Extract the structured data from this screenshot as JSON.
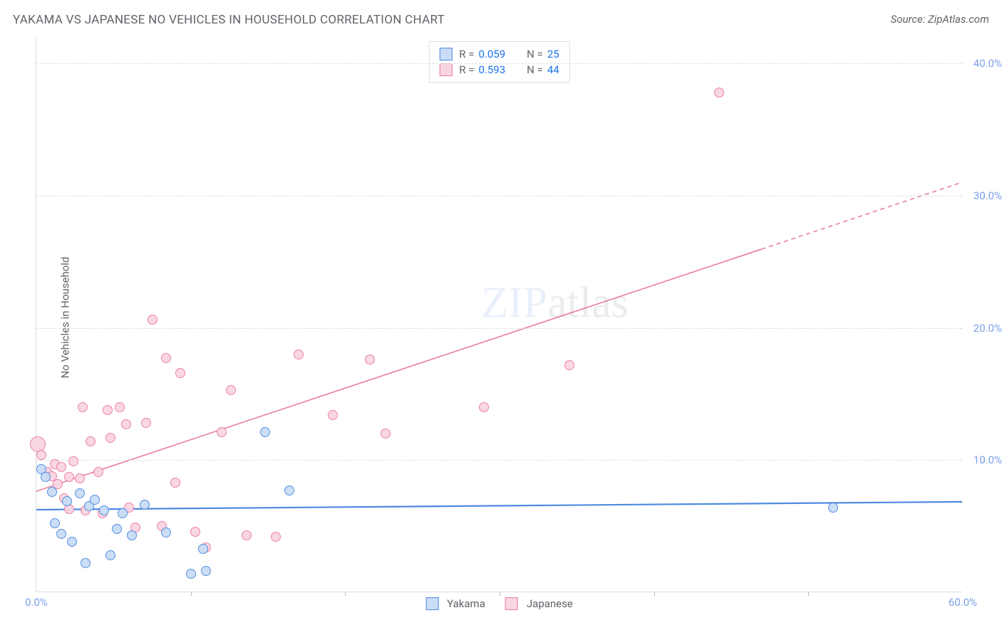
{
  "title": "YAKAMA VS JAPANESE NO VEHICLES IN HOUSEHOLD CORRELATION CHART",
  "source": "Source: ZipAtlas.com",
  "ylabel": "No Vehicles in Household",
  "watermark_a": "ZIP",
  "watermark_b": "atlas",
  "chart": {
    "type": "scatter",
    "xlim": [
      0,
      60
    ],
    "ylim": [
      0,
      42
    ],
    "xtick_labels": [
      {
        "v": 0,
        "label": "0.0%"
      },
      {
        "v": 60,
        "label": "60.0%"
      }
    ],
    "xtick_minor": [
      10,
      20,
      30,
      40,
      50
    ],
    "ytick_labels": [
      {
        "v": 10,
        "label": "10.0%"
      },
      {
        "v": 20,
        "label": "20.0%"
      },
      {
        "v": 30,
        "label": "30.0%"
      },
      {
        "v": 40,
        "label": "40.0%"
      }
    ],
    "gridlines_y": [
      10,
      20,
      30,
      40
    ],
    "background_color": "#ffffff",
    "grid_color": "#dadce0",
    "axis_label_color": "#7aa0e8",
    "marker_size": 14,
    "marker_border": 1.2,
    "marker_fill_opacity": 0.28,
    "series": [
      {
        "name": "Yakama",
        "color_stroke": "#4e8ae0",
        "color_fill": "#c9ddf6",
        "r_label": "R =",
        "r_value": "0.059",
        "n_label": "N =",
        "n_value": "25",
        "trend": {
          "y_at_x0": 6.2,
          "y_at_xmax": 6.8,
          "dash_from_x": null,
          "width": 2.2
        },
        "points": [
          {
            "x": 0.3,
            "y": 9.3
          },
          {
            "x": 0.6,
            "y": 8.7
          },
          {
            "x": 1.0,
            "y": 7.6
          },
          {
            "x": 1.2,
            "y": 5.2
          },
          {
            "x": 1.6,
            "y": 4.4
          },
          {
            "x": 2.0,
            "y": 6.9
          },
          {
            "x": 2.3,
            "y": 3.8
          },
          {
            "x": 2.8,
            "y": 7.5
          },
          {
            "x": 3.2,
            "y": 2.2
          },
          {
            "x": 3.4,
            "y": 6.5
          },
          {
            "x": 3.8,
            "y": 7.0
          },
          {
            "x": 4.4,
            "y": 6.2
          },
          {
            "x": 4.8,
            "y": 2.8
          },
          {
            "x": 5.2,
            "y": 4.8
          },
          {
            "x": 5.6,
            "y": 6.0
          },
          {
            "x": 6.2,
            "y": 4.3
          },
          {
            "x": 7.0,
            "y": 6.6
          },
          {
            "x": 8.4,
            "y": 4.5
          },
          {
            "x": 10.0,
            "y": 1.4
          },
          {
            "x": 10.8,
            "y": 3.3
          },
          {
            "x": 11.0,
            "y": 1.6
          },
          {
            "x": 14.8,
            "y": 12.1
          },
          {
            "x": 16.4,
            "y": 7.7
          },
          {
            "x": 51.6,
            "y": 6.4
          }
        ]
      },
      {
        "name": "Japanese",
        "color_stroke": "#e97ca0",
        "color_fill": "#f9d5e2",
        "r_label": "R =",
        "r_value": "0.593",
        "n_label": "N =",
        "n_value": "44",
        "trend": {
          "y_at_x0": 7.6,
          "y_at_xmax": 31.0,
          "dash_from_x": 47,
          "width": 1.6
        },
        "points": [
          {
            "x": 0.1,
            "y": 11.2,
            "r": 22
          },
          {
            "x": 0.3,
            "y": 10.4
          },
          {
            "x": 0.7,
            "y": 9.1
          },
          {
            "x": 1.0,
            "y": 8.8
          },
          {
            "x": 1.2,
            "y": 9.7
          },
          {
            "x": 1.4,
            "y": 8.2
          },
          {
            "x": 1.6,
            "y": 9.5
          },
          {
            "x": 1.8,
            "y": 7.1
          },
          {
            "x": 2.1,
            "y": 8.7
          },
          {
            "x": 2.1,
            "y": 6.3
          },
          {
            "x": 2.4,
            "y": 9.9
          },
          {
            "x": 2.8,
            "y": 8.6
          },
          {
            "x": 3.0,
            "y": 14.0
          },
          {
            "x": 3.2,
            "y": 6.2
          },
          {
            "x": 3.5,
            "y": 11.4
          },
          {
            "x": 4.0,
            "y": 9.1
          },
          {
            "x": 4.3,
            "y": 6.0
          },
          {
            "x": 4.6,
            "y": 13.8
          },
          {
            "x": 4.8,
            "y": 11.7
          },
          {
            "x": 5.4,
            "y": 14.0
          },
          {
            "x": 5.8,
            "y": 12.7
          },
          {
            "x": 6.0,
            "y": 6.4
          },
          {
            "x": 6.4,
            "y": 4.9
          },
          {
            "x": 7.1,
            "y": 12.8
          },
          {
            "x": 7.5,
            "y": 20.6
          },
          {
            "x": 8.1,
            "y": 5.0
          },
          {
            "x": 8.4,
            "y": 17.7
          },
          {
            "x": 9.0,
            "y": 8.3
          },
          {
            "x": 9.3,
            "y": 16.6
          },
          {
            "x": 10.3,
            "y": 4.6
          },
          {
            "x": 11.0,
            "y": 3.4
          },
          {
            "x": 12.0,
            "y": 12.1
          },
          {
            "x": 12.6,
            "y": 15.3
          },
          {
            "x": 13.6,
            "y": 4.3
          },
          {
            "x": 15.5,
            "y": 4.2
          },
          {
            "x": 17.0,
            "y": 18.0
          },
          {
            "x": 19.2,
            "y": 13.4
          },
          {
            "x": 21.6,
            "y": 17.6
          },
          {
            "x": 22.6,
            "y": 12.0
          },
          {
            "x": 29.0,
            "y": 14.0
          },
          {
            "x": 34.5,
            "y": 17.2
          },
          {
            "x": 44.2,
            "y": 37.8
          }
        ]
      }
    ],
    "legend_bottom": [
      {
        "label": "Yakama",
        "stroke": "#4e8ae0",
        "fill": "#c9ddf6"
      },
      {
        "label": "Japanese",
        "stroke": "#e97ca0",
        "fill": "#f9d5e2"
      }
    ]
  }
}
